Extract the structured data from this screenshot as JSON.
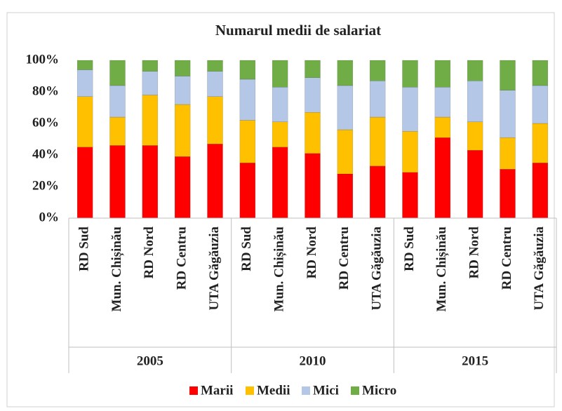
{
  "chart_data": {
    "type": "stacked_bar",
    "title": "Numarul medii de salariat",
    "categories": [
      "RD Sud",
      "Mun. Chișinău",
      "RD Nord",
      "RD Centru",
      "UTA Găgăuzia",
      "RD Sud",
      "Mun. Chișinău",
      "RD Nord",
      "RD Centru",
      "UTA Găgăuzia",
      "RD Sud",
      "Mun. Chișinău",
      "RD Nord",
      "RD Centru",
      "UTA Găgăuzia"
    ],
    "groups": [
      "2005",
      "2010",
      "2015"
    ],
    "series": [
      {
        "name": "Marii",
        "color": "#ff0000",
        "values": [
          45,
          46,
          46,
          39,
          47,
          35,
          45,
          41,
          28,
          33,
          29,
          51,
          43,
          31,
          35
        ]
      },
      {
        "name": "Medii",
        "color": "#ffc000",
        "values": [
          32,
          18,
          32,
          33,
          30,
          27,
          16,
          26,
          28,
          31,
          26,
          13,
          18,
          20,
          25
        ]
      },
      {
        "name": "Mici",
        "color": "#b4c7e7",
        "values": [
          17,
          20,
          15,
          18,
          16,
          26,
          22,
          22,
          28,
          23,
          28,
          19,
          26,
          30,
          24
        ]
      },
      {
        "name": "Micro",
        "color": "#70ad47",
        "values": [
          6,
          16,
          7,
          10,
          7,
          12,
          17,
          11,
          16,
          13,
          17,
          17,
          13,
          19,
          16
        ]
      }
    ],
    "ylim": [
      0,
      100
    ],
    "yticks": [
      {
        "value": 0,
        "label": "0%"
      },
      {
        "value": 20,
        "label": "20%"
      },
      {
        "value": 40,
        "label": "40%"
      },
      {
        "value": 60,
        "label": "60%"
      },
      {
        "value": 80,
        "label": "80%"
      },
      {
        "value": 100,
        "label": "100%"
      }
    ],
    "legend": "bottom"
  }
}
